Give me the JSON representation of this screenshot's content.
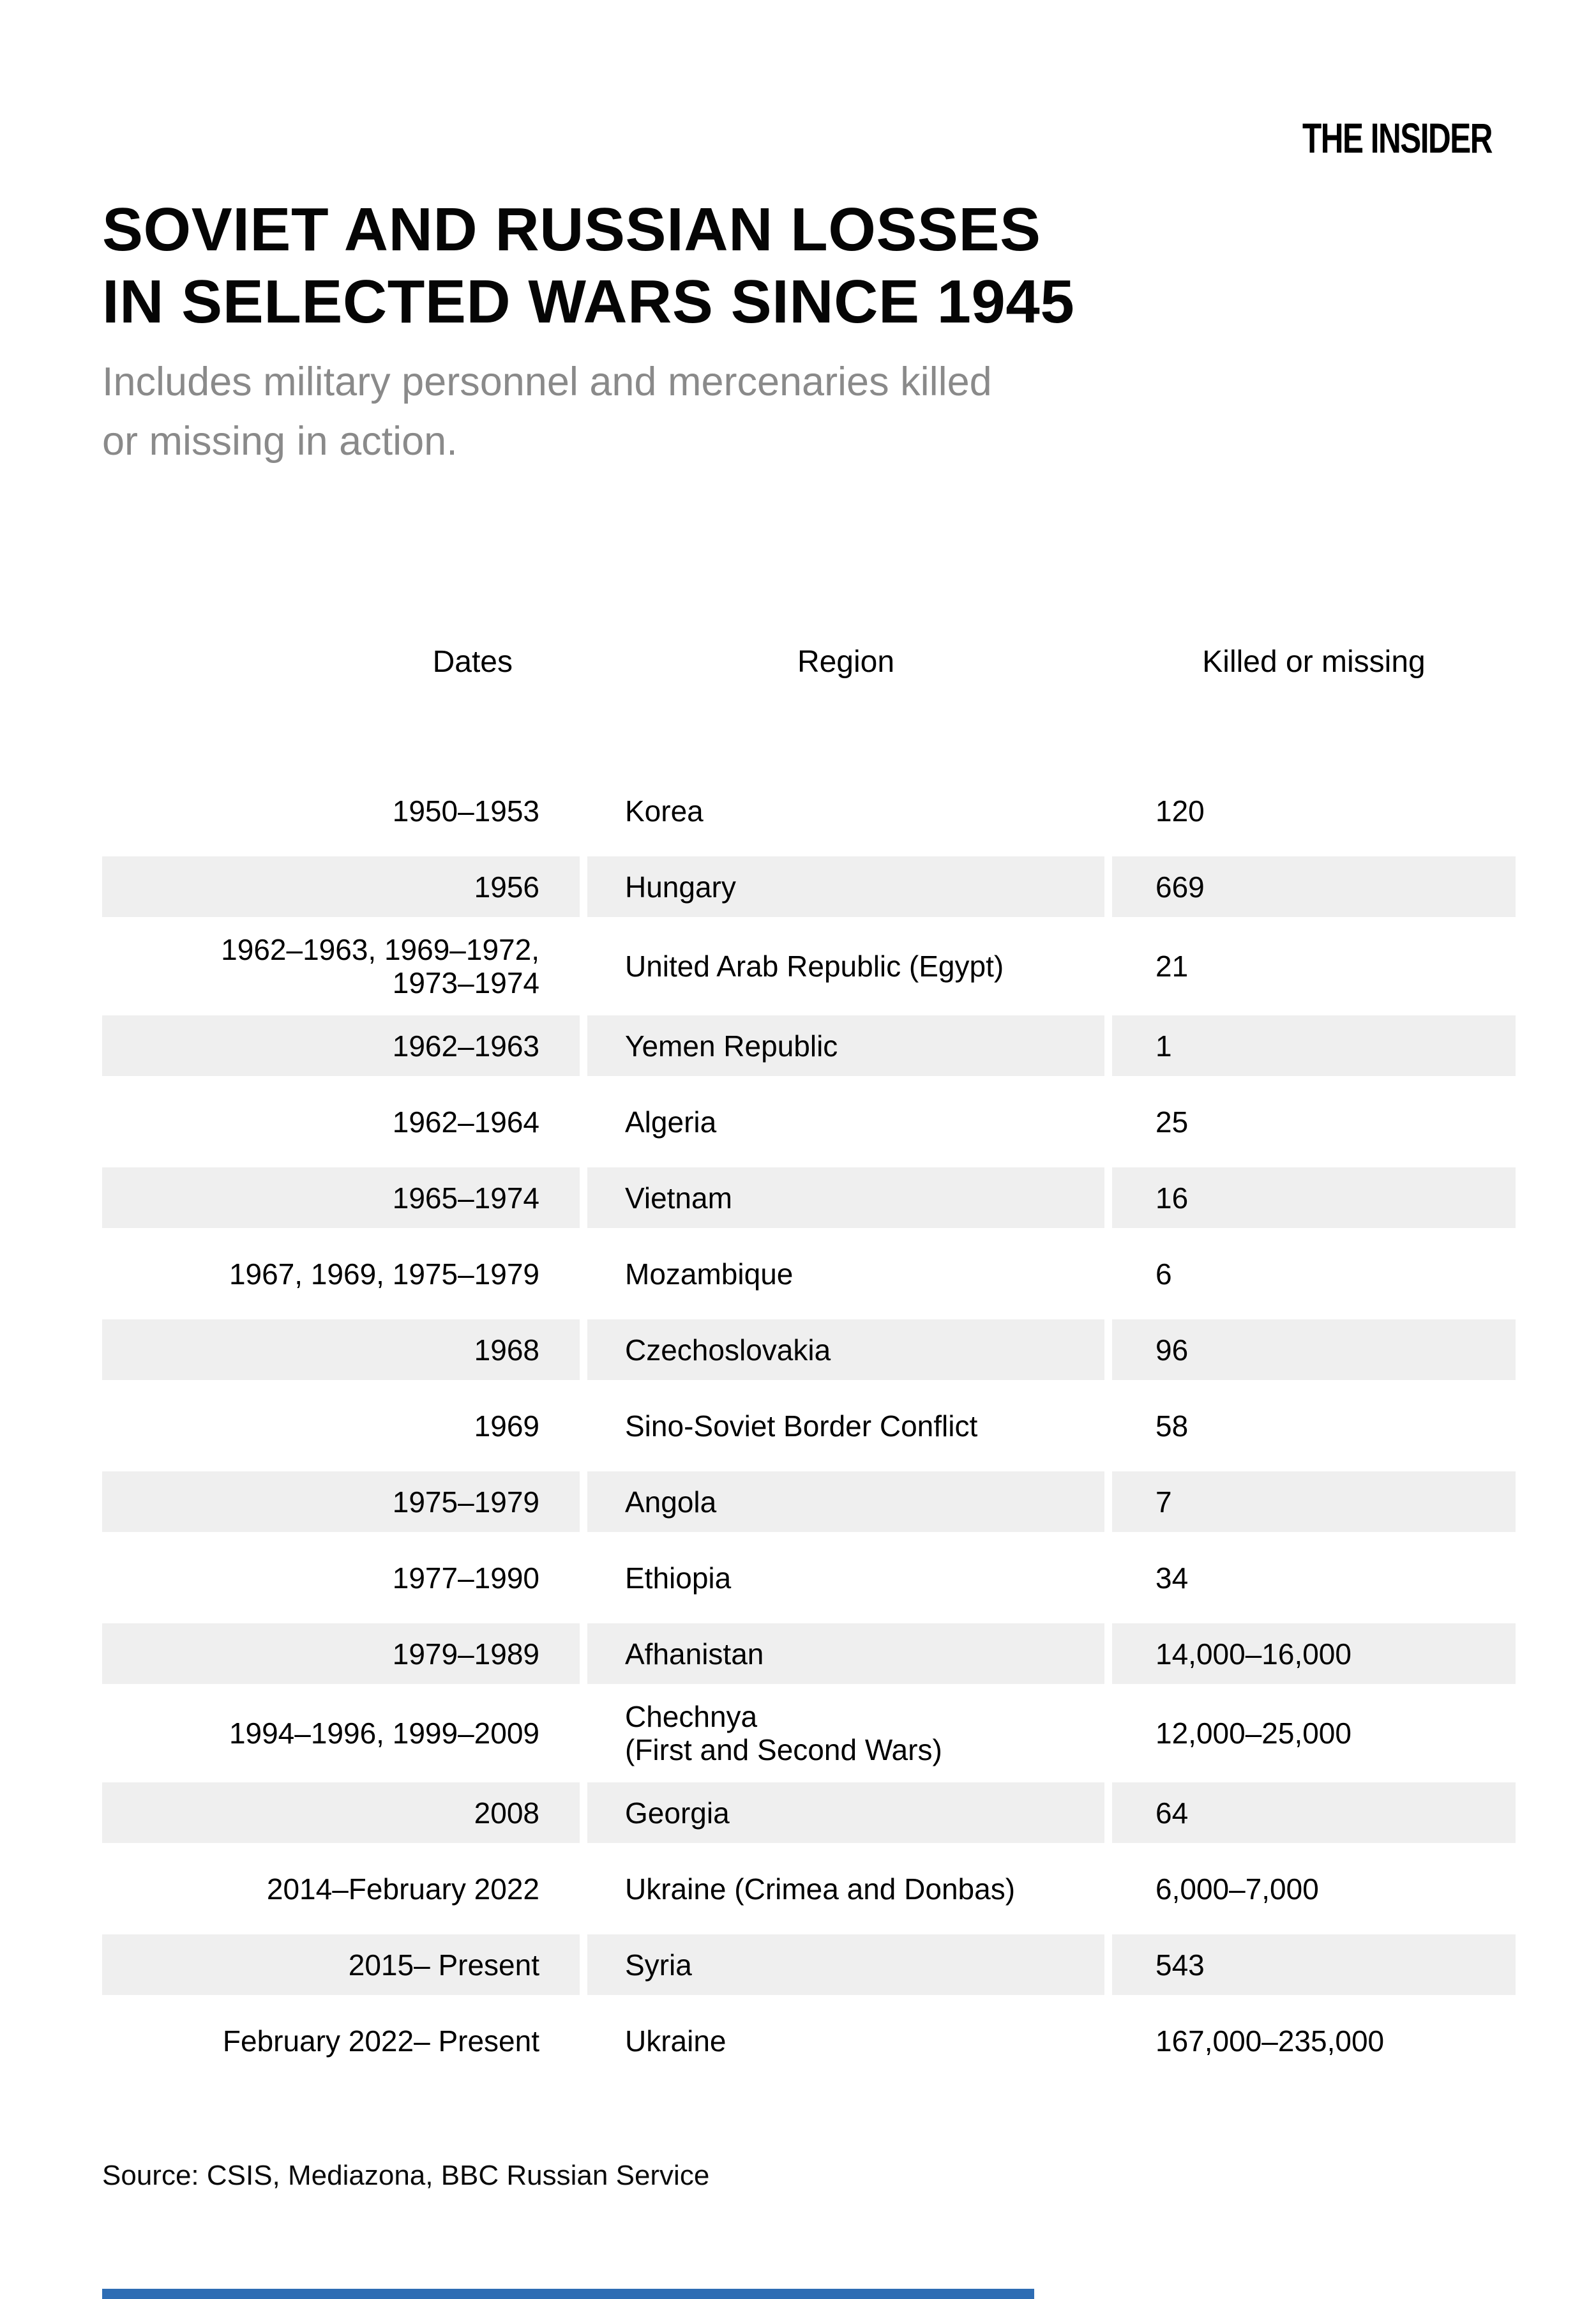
{
  "brand": {
    "logo_text": "THE INSIDER"
  },
  "header": {
    "title_line1": "SOVIET AND RUSSIAN LOSSES",
    "title_line2": "IN SELECTED WARS SINCE 1945",
    "subtitle": "Includes military personnel and mercenaries killed\nor missing in action."
  },
  "chart_data": {
    "type": "table",
    "title": "SOVIET AND RUSSIAN LOSSES IN SELECTED WARS SINCE 1945",
    "subtitle": "Includes military personnel and mercenaries killed or missing in action.",
    "columns": [
      "Dates",
      "Region",
      "Killed or missing"
    ],
    "rows": [
      {
        "dates": "1950–1953",
        "region": "Korea",
        "killed": "120"
      },
      {
        "dates": "1956",
        "region": "Hungary",
        "killed": "669"
      },
      {
        "dates": "1962–1963, 1969–1972,\n1973–1974",
        "region": "United Arab Republic (Egypt)",
        "killed": "21"
      },
      {
        "dates": "1962–1963",
        "region": "Yemen Republic",
        "killed": "1"
      },
      {
        "dates": "1962–1964",
        "region": "Algeria",
        "killed": "25"
      },
      {
        "dates": "1965–1974",
        "region": "Vietnam",
        "killed": "16"
      },
      {
        "dates": "1967, 1969, 1975–1979",
        "region": "Mozambique",
        "killed": "6"
      },
      {
        "dates": "1968",
        "region": "Czechoslovakia",
        "killed": "96"
      },
      {
        "dates": "1969",
        "region": "Sino-Soviet Border Conflict",
        "killed": "58"
      },
      {
        "dates": "1975–1979",
        "region": "Angola",
        "killed": "7"
      },
      {
        "dates": "1977–1990",
        "region": "Ethiopia",
        "killed": "34"
      },
      {
        "dates": "1979–1989",
        "region": "Afhanistan",
        "killed": "14,000–16,000"
      },
      {
        "dates": "1994–1996, 1999–2009",
        "region": "Chechnya\n(First and Second Wars)",
        "killed": "12,000–25,000"
      },
      {
        "dates": "2008",
        "region": "Georgia",
        "killed": "64"
      },
      {
        "dates": "2014–February 2022",
        "region": "Ukraine (Crimea and Donbas)",
        "killed": "6,000–7,000"
      },
      {
        "dates": "2015– Present",
        "region": "Syria",
        "killed": "543"
      },
      {
        "dates": "February 2022– Present",
        "region": "Ukraine",
        "killed": "167,000–235,000"
      }
    ],
    "layout": {
      "stripe_rows": "even rows shaded",
      "grid": false
    }
  },
  "footer": {
    "source": "Source: CSIS, Mediazona, BBC Russian Service"
  },
  "colors": {
    "text": "#000000",
    "subtitle_text": "#8a8a8a",
    "stripe_bg": "#efefef",
    "accent_bar": "#2e6db4",
    "background": "#ffffff"
  }
}
